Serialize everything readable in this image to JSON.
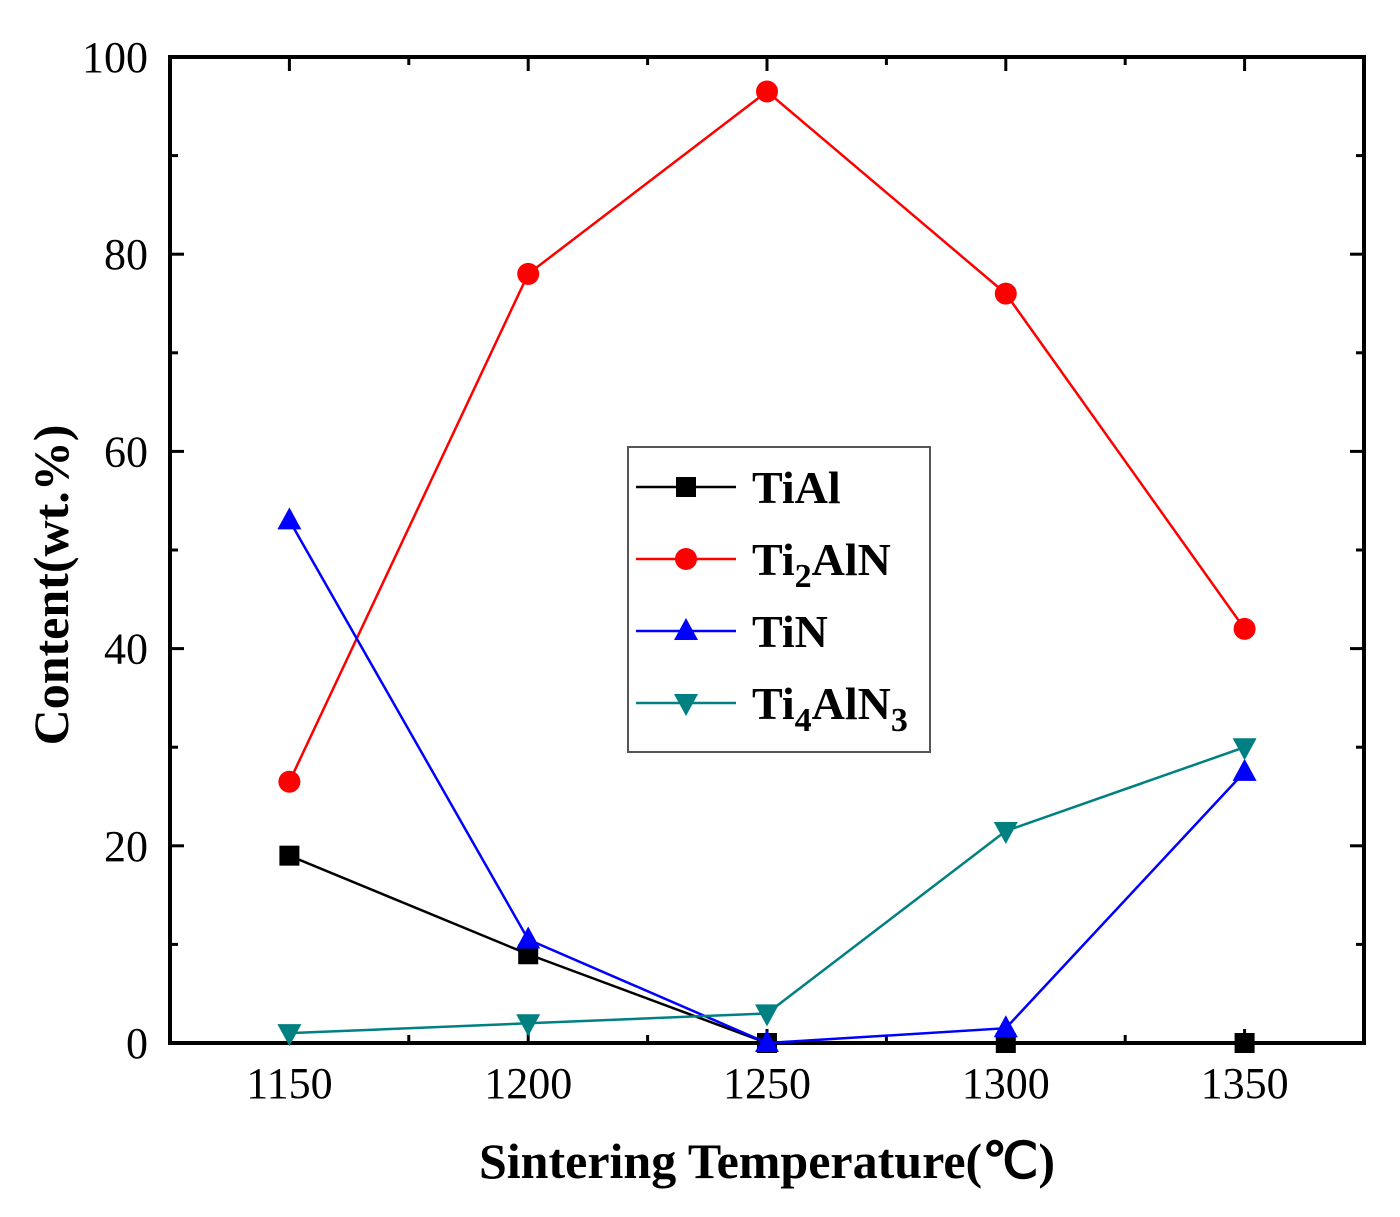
{
  "chart_data": {
    "type": "line",
    "title": "",
    "xlabel": "Sintering Temperature(℃)",
    "ylabel": "Content(wt.%)",
    "x": [
      1150,
      1200,
      1250,
      1300,
      1350
    ],
    "xlim": [
      1125,
      1375
    ],
    "ylim": [
      0,
      100
    ],
    "x_ticks": [
      "1150",
      "1200",
      "1250",
      "1300",
      "1350"
    ],
    "y_ticks": [
      "0",
      "20",
      "40",
      "60",
      "80",
      "100"
    ],
    "legend_position": "center",
    "grid": false,
    "series": [
      {
        "name": "TiAl",
        "label_main": "TiAl",
        "label_parts": [
          {
            "t": "TiAl",
            "sub": false
          }
        ],
        "color": "#000000",
        "marker": "square",
        "values": [
          19,
          9,
          0,
          0,
          0
        ]
      },
      {
        "name": "Ti2AlN",
        "label_parts": [
          {
            "t": "Ti",
            "sub": false
          },
          {
            "t": "2",
            "sub": true
          },
          {
            "t": "AlN",
            "sub": false
          }
        ],
        "color": "#ff0000",
        "marker": "circle",
        "values": [
          26.5,
          78,
          96.5,
          76,
          42
        ]
      },
      {
        "name": "TiN",
        "label_parts": [
          {
            "t": "TiN",
            "sub": false
          }
        ],
        "color": "#0000ff",
        "marker": "triangle-up",
        "values": [
          53,
          10.5,
          0,
          1.5,
          27.5
        ]
      },
      {
        "name": "Ti4AlN3",
        "label_parts": [
          {
            "t": "Ti",
            "sub": false
          },
          {
            "t": "4",
            "sub": true
          },
          {
            "t": "AlN",
            "sub": false
          },
          {
            "t": "3",
            "sub": true
          }
        ],
        "color": "#008080",
        "marker": "triangle-down",
        "values": [
          1,
          2,
          3,
          21.5,
          30
        ]
      }
    ]
  }
}
